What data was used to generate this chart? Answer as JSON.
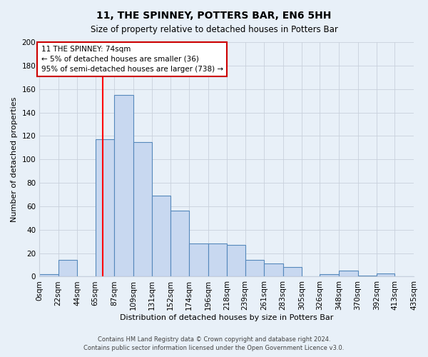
{
  "title": "11, THE SPINNEY, POTTERS BAR, EN6 5HH",
  "subtitle": "Size of property relative to detached houses in Potters Bar",
  "xlabel": "Distribution of detached houses by size in Potters Bar",
  "ylabel": "Number of detached properties",
  "footer_lines": [
    "Contains HM Land Registry data © Crown copyright and database right 2024.",
    "Contains public sector information licensed under the Open Government Licence v3.0."
  ],
  "bin_edges": [
    0,
    22,
    44,
    65,
    87,
    109,
    131,
    152,
    174,
    196,
    218,
    239,
    261,
    283,
    305,
    326,
    348,
    370,
    392,
    413,
    435
  ],
  "bin_labels": [
    "0sqm",
    "22sqm",
    "44sqm",
    "65sqm",
    "87sqm",
    "109sqm",
    "131sqm",
    "152sqm",
    "174sqm",
    "196sqm",
    "218sqm",
    "239sqm",
    "261sqm",
    "283sqm",
    "305sqm",
    "326sqm",
    "348sqm",
    "370sqm",
    "392sqm",
    "413sqm",
    "435sqm"
  ],
  "bar_heights": [
    2,
    14,
    0,
    117,
    155,
    115,
    69,
    56,
    28,
    28,
    27,
    14,
    11,
    8,
    0,
    2,
    5,
    1,
    3,
    0
  ],
  "bar_color": "#c8d8f0",
  "bar_edge_color": "#5588bb",
  "vline_x": 74,
  "vline_color": "red",
  "annotation_title": "11 THE SPINNEY: 74sqm",
  "annotation_line1": "← 5% of detached houses are smaller (36)",
  "annotation_line2": "95% of semi-detached houses are larger (738) →",
  "annotation_box_facecolor": "white",
  "annotation_box_edgecolor": "#cc0000",
  "ylim": [
    0,
    200
  ],
  "yticks": [
    0,
    20,
    40,
    60,
    80,
    100,
    120,
    140,
    160,
    180,
    200
  ],
  "background_color": "#e8f0f8",
  "plot_bg_color": "#e8f0f8",
  "grid_color": "#c8d0dc",
  "title_fontsize": 10,
  "subtitle_fontsize": 8.5,
  "ylabel_fontsize": 8,
  "xlabel_fontsize": 8,
  "tick_fontsize": 7.5,
  "annotation_fontsize": 7.5,
  "footer_fontsize": 6
}
